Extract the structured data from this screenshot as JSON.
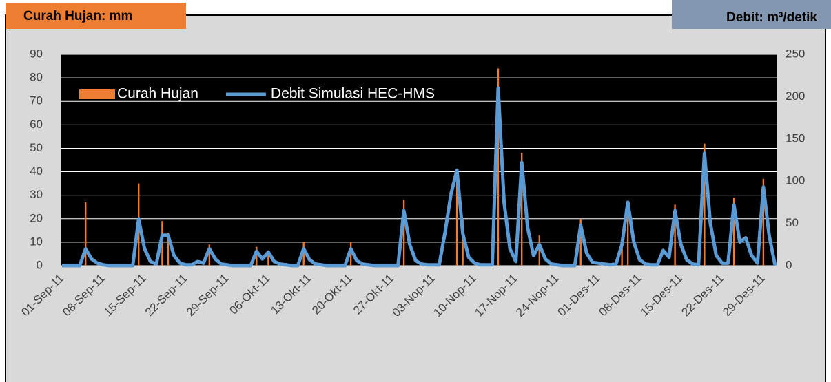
{
  "chart_data": {
    "type": "bar",
    "y_label": "Curah Hujan: mm",
    "y2_label": "Debit: m³/detik",
    "categories": [
      "01-Sep-11",
      null,
      null,
      null,
      null,
      null,
      null,
      "08-Sep-11",
      null,
      null,
      null,
      null,
      null,
      null,
      "15-Sep-11",
      null,
      null,
      null,
      null,
      null,
      null,
      "22-Sep-11",
      null,
      null,
      null,
      null,
      null,
      null,
      "29-Sep-11",
      null,
      null,
      null,
      null,
      null,
      null,
      "06-Okt-11",
      null,
      null,
      null,
      null,
      null,
      null,
      "13-Okt-11",
      null,
      null,
      null,
      null,
      null,
      null,
      "20-Okt-11",
      null,
      null,
      null,
      null,
      null,
      null,
      "27-Okt-11",
      null,
      null,
      null,
      null,
      null,
      null,
      "03-Nop-11",
      null,
      null,
      null,
      null,
      null,
      null,
      "10-Nop-11",
      null,
      null,
      null,
      null,
      null,
      null,
      "17-Nop-11",
      null,
      null,
      null,
      null,
      null,
      null,
      "24-Nop-11",
      null,
      null,
      null,
      null,
      null,
      null,
      "01-Des-11",
      null,
      null,
      null,
      null,
      null,
      null,
      "08-Des-11",
      null,
      null,
      null,
      null,
      null,
      null,
      "15-Des-11",
      null,
      null,
      null,
      null,
      null,
      null,
      "22-Des-11",
      null,
      null,
      null,
      null,
      null,
      null,
      "29-Des-11",
      null,
      null
    ],
    "series": [
      {
        "name": "Curah Hujan",
        "type": "bar",
        "color": "#ed7d31",
        "values": [
          0,
          0,
          0,
          0,
          27,
          0,
          0,
          0,
          0,
          0,
          0,
          0,
          0,
          35,
          0,
          0,
          0,
          19,
          14,
          0,
          0,
          0,
          0,
          0,
          0,
          9,
          0,
          0,
          0,
          0,
          0,
          0,
          0,
          8,
          0,
          5,
          0,
          0,
          0,
          0,
          0,
          10,
          0,
          0,
          0,
          0,
          0,
          0,
          0,
          10,
          0,
          0,
          0,
          0,
          0,
          0,
          0,
          0,
          28,
          0,
          0,
          0,
          0,
          0,
          0,
          0,
          0,
          41,
          20,
          0,
          0,
          0,
          0,
          0,
          84,
          0,
          0,
          0,
          48,
          0,
          0,
          13,
          0,
          0,
          0,
          0,
          0,
          0,
          20,
          0,
          0,
          0,
          0,
          0,
          0,
          12,
          27,
          0,
          0,
          0,
          0,
          0,
          0,
          0,
          26,
          0,
          0,
          0,
          0,
          52,
          0,
          0,
          0,
          0,
          29,
          0,
          0,
          0,
          0,
          37,
          0,
          0
        ]
      },
      {
        "name": "Debit Simulasi HEC-HMS",
        "type": "line",
        "axis": "y2",
        "color": "#5b9bd5",
        "values": [
          0,
          0,
          0,
          0,
          20,
          8,
          3,
          1,
          0,
          0,
          0,
          0,
          0,
          55,
          20,
          5,
          2,
          36,
          36,
          12,
          3,
          1,
          1,
          5,
          3,
          20,
          8,
          2,
          1,
          0,
          0,
          0,
          0,
          17,
          8,
          16,
          5,
          2,
          1,
          0,
          0,
          20,
          7,
          2,
          1,
          0,
          0,
          0,
          0,
          20,
          6,
          2,
          1,
          0,
          0,
          0,
          0,
          0,
          65,
          25,
          6,
          2,
          1,
          1,
          1,
          40,
          85,
          113,
          38,
          10,
          3,
          1,
          1,
          1,
          210,
          75,
          20,
          5,
          122,
          45,
          12,
          25,
          8,
          2,
          1,
          0,
          0,
          0,
          48,
          15,
          4,
          3,
          2,
          1,
          2,
          25,
          75,
          28,
          7,
          2,
          1,
          1,
          18,
          10,
          65,
          25,
          7,
          2,
          1,
          133,
          50,
          12,
          3,
          3,
          72,
          28,
          33,
          12,
          3,
          93,
          35,
          0
        ]
      }
    ],
    "ylim": [
      0,
      90
    ],
    "yticks": [
      0,
      10,
      20,
      30,
      40,
      50,
      60,
      70,
      80,
      90
    ],
    "y2lim": [
      0,
      250
    ],
    "y2ticks": [
      0,
      50,
      100,
      150,
      200,
      250
    ],
    "grid": true,
    "legend": "top-left"
  }
}
